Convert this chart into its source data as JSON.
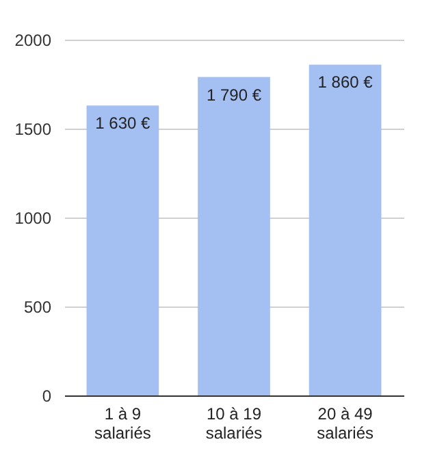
{
  "chart_data": {
    "type": "bar",
    "categories": [
      "1 à 9 salariés",
      "10 à 19 salariés",
      "20 à 49 salariés"
    ],
    "values": [
      1630,
      1790,
      1860
    ],
    "value_labels": [
      "1 630 €",
      "1 790 €",
      "1 860 €"
    ],
    "color": "#a4bff2",
    "ylim": [
      0,
      2000
    ],
    "yticks": [
      0,
      500,
      1000,
      1500,
      2000
    ],
    "grid": "y"
  }
}
